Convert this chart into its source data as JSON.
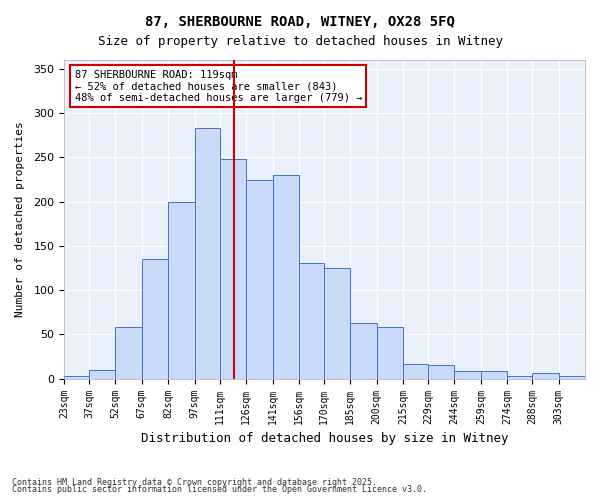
{
  "title1": "87, SHERBOURNE ROAD, WITNEY, OX28 5FQ",
  "title2": "Size of property relative to detached houses in Witney",
  "xlabel": "Distribution of detached houses by size in Witney",
  "ylabel": "Number of detached properties",
  "annotation_line1": "87 SHERBOURNE ROAD: 119sqm",
  "annotation_line2": "← 52% of detached houses are smaller (843)",
  "annotation_line3": "48% of semi-detached houses are larger (779) →",
  "property_value": 119,
  "bins": [
    23,
    37,
    52,
    67,
    82,
    97,
    111,
    126,
    141,
    156,
    170,
    185,
    200,
    215,
    229,
    244,
    259,
    274,
    288,
    303,
    318
  ],
  "bar_heights": [
    3,
    10,
    58,
    135,
    200,
    283,
    248,
    225,
    230,
    131,
    125,
    63,
    58,
    17,
    15,
    9,
    9,
    3,
    6,
    3
  ],
  "bar_color": "#c9daf8",
  "bar_edge_color": "#4472c4",
  "vline_color": "#cc0000",
  "vline_x": 119,
  "background_color": "#ffffff",
  "plot_bg_color": "#eaf0fb",
  "grid_color": "#ffffff",
  "annotation_box_color": "#ffffff",
  "annotation_box_edge": "#cc0000",
  "ylim": [
    0,
    360
  ],
  "yticks": [
    0,
    50,
    100,
    150,
    200,
    250,
    300,
    350
  ],
  "footnote1": "Contains HM Land Registry data © Crown copyright and database right 2025.",
  "footnote2": "Contains public sector information licensed under the Open Government Licence v3.0."
}
